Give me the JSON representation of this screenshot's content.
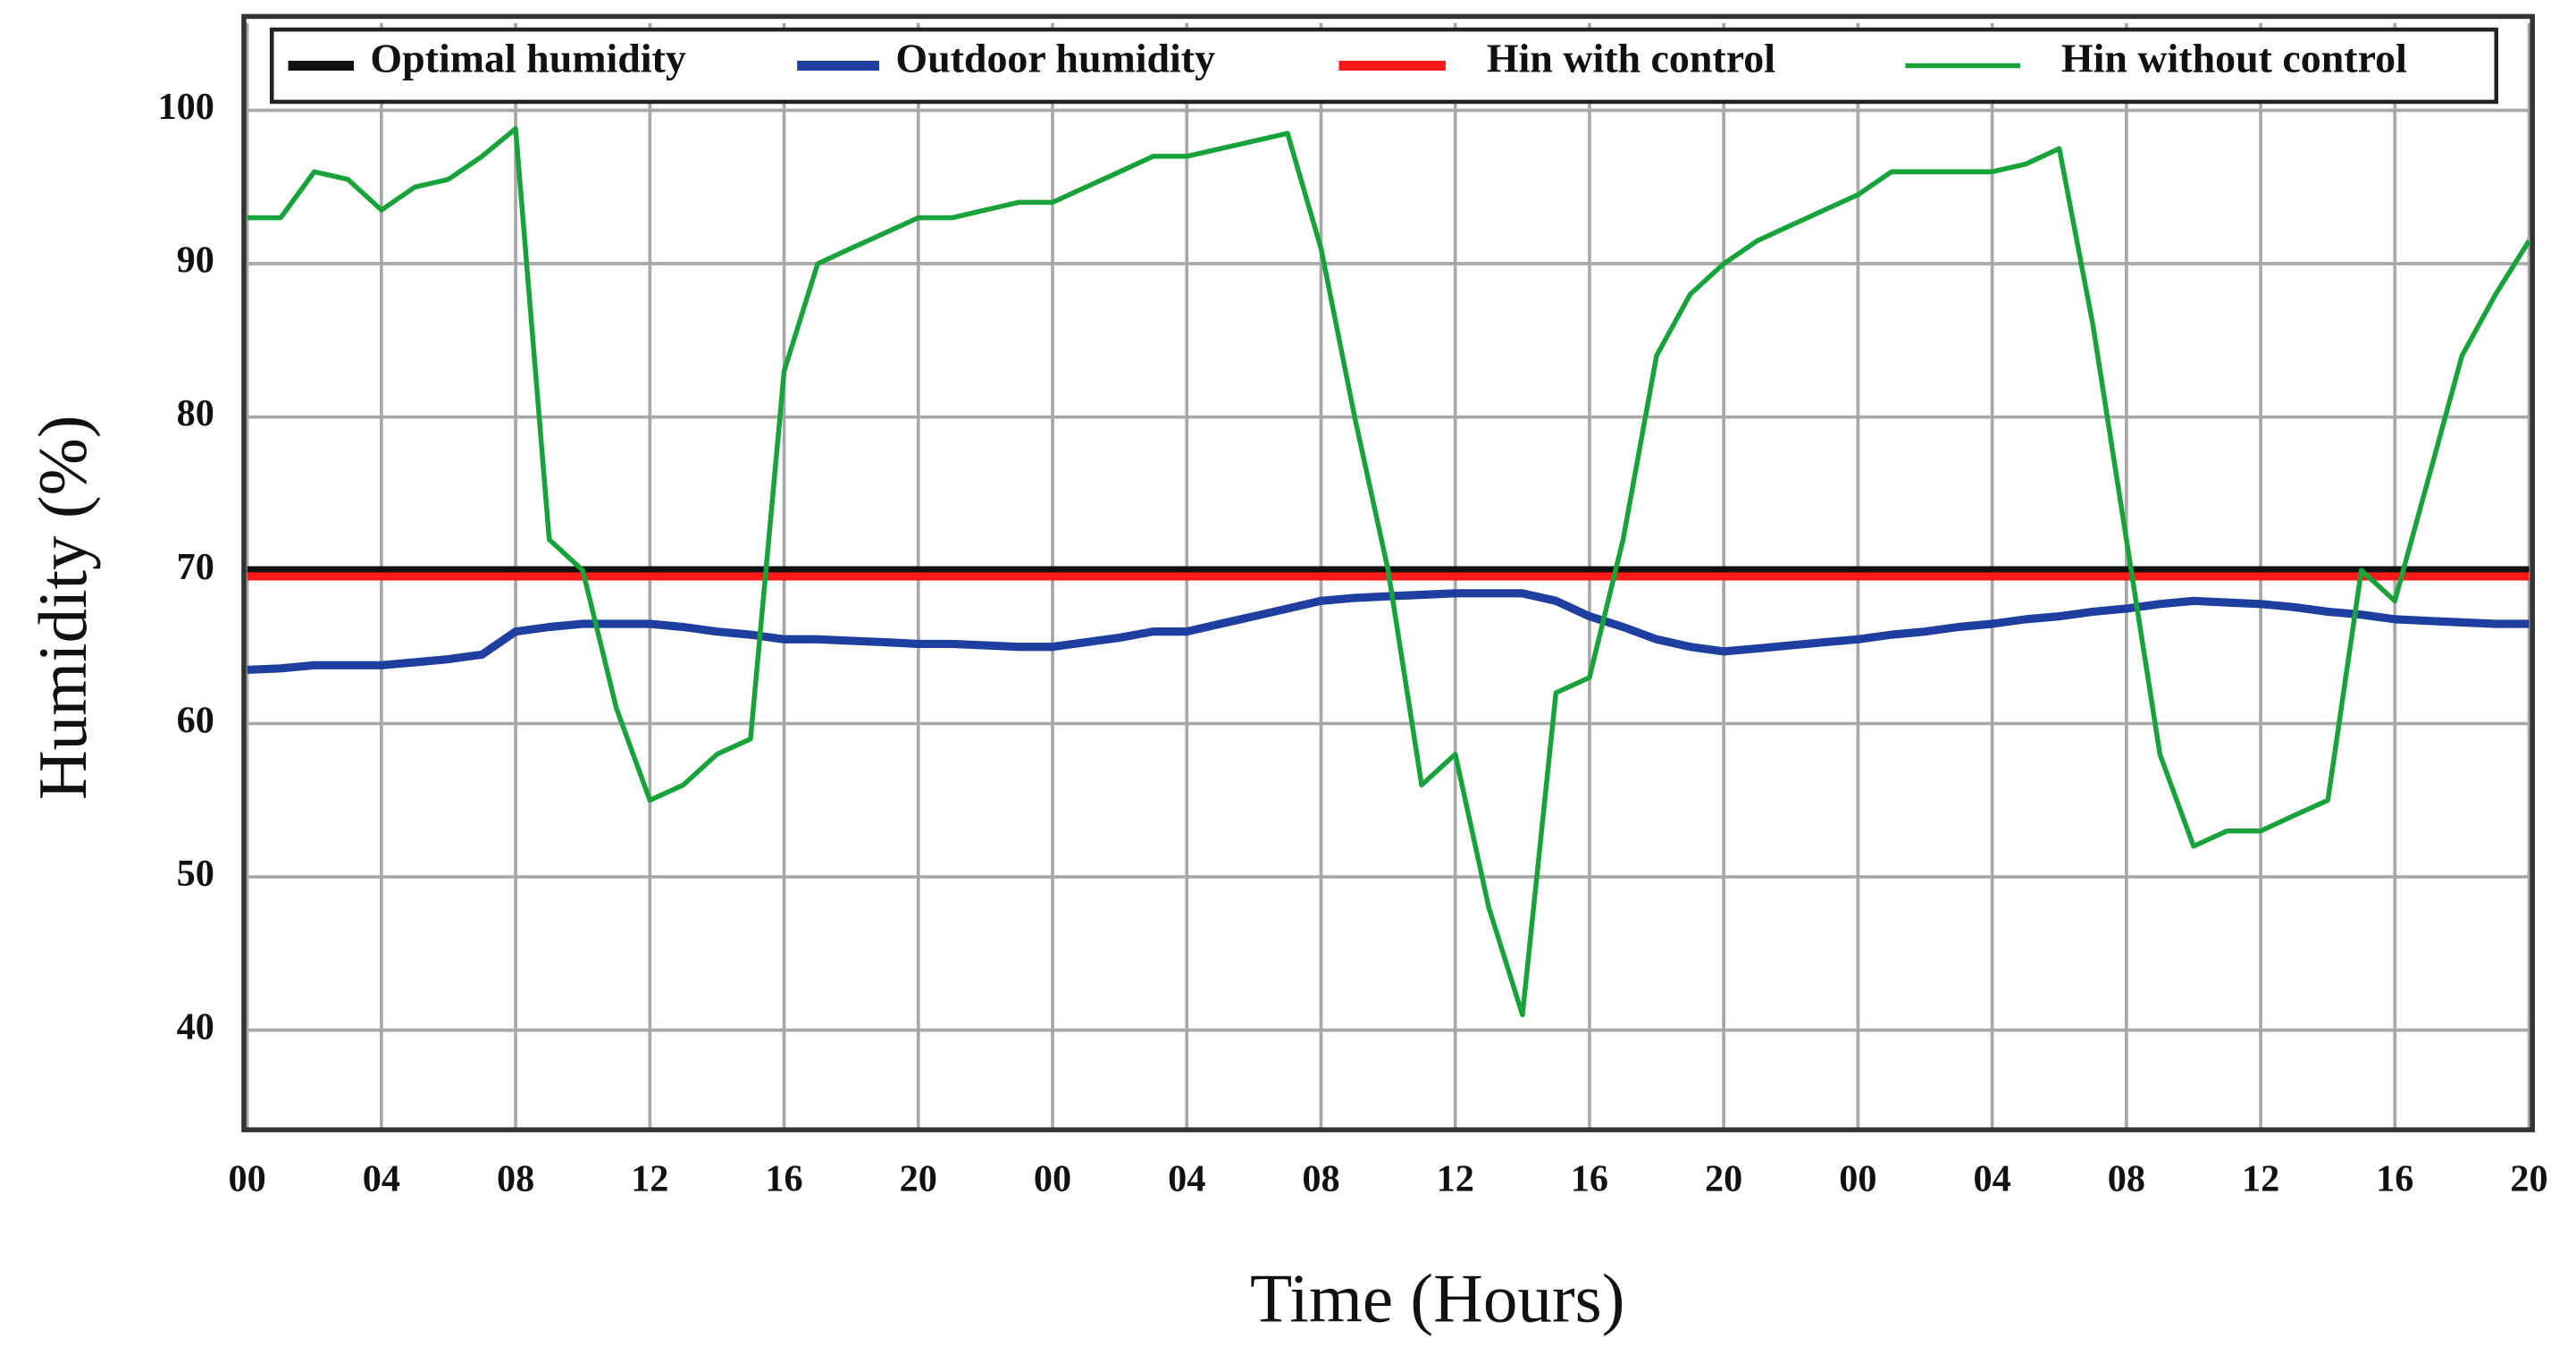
{
  "chart_data": {
    "type": "line",
    "x_label": "Time (Hours)",
    "y_label": "Humidity (%)",
    "x": [
      0,
      1,
      2,
      3,
      4,
      5,
      6,
      7,
      8,
      9,
      10,
      11,
      12,
      13,
      14,
      15,
      16,
      17,
      18,
      19,
      20,
      21,
      22,
      23,
      24,
      25,
      26,
      27,
      28,
      29,
      30,
      31,
      32,
      33,
      34,
      35,
      36,
      37,
      38,
      39,
      40,
      41,
      42,
      43,
      44,
      45,
      46,
      47,
      48,
      49,
      50,
      51,
      52,
      53,
      54,
      55,
      56,
      57,
      58,
      59,
      60,
      61,
      62,
      63,
      64,
      65,
      66,
      67,
      68
    ],
    "xlim": [
      0,
      68
    ],
    "xticks": [
      {
        "value": 0,
        "label": "00"
      },
      {
        "value": 4,
        "label": "04"
      },
      {
        "value": 8,
        "label": "08"
      },
      {
        "value": 12,
        "label": "12"
      },
      {
        "value": 16,
        "label": "16"
      },
      {
        "value": 20,
        "label": "20"
      },
      {
        "value": 24,
        "label": "00"
      },
      {
        "value": 28,
        "label": "04"
      },
      {
        "value": 32,
        "label": "08"
      },
      {
        "value": 36,
        "label": "12"
      },
      {
        "value": 40,
        "label": "16"
      },
      {
        "value": 44,
        "label": "20"
      },
      {
        "value": 48,
        "label": "00"
      },
      {
        "value": 52,
        "label": "04"
      },
      {
        "value": 56,
        "label": "08"
      },
      {
        "value": 60,
        "label": "12"
      },
      {
        "value": 64,
        "label": "16"
      },
      {
        "value": 68,
        "label": "20"
      }
    ],
    "ylim": [
      33.5,
      105.7
    ],
    "yticks": [
      40,
      50,
      60,
      70,
      80,
      90,
      100
    ],
    "grid": true,
    "legend": "top",
    "series": [
      {
        "name": "Optimal humidity",
        "color": "#111111",
        "values": [
          70,
          70,
          70,
          70,
          70,
          70,
          70,
          70,
          70,
          70,
          70,
          70,
          70,
          70,
          70,
          70,
          70,
          70,
          70,
          70,
          70,
          70,
          70,
          70,
          70,
          70,
          70,
          70,
          70,
          70,
          70,
          70,
          70,
          70,
          70,
          70,
          70,
          70,
          70,
          70,
          70,
          70,
          70,
          70,
          70,
          70,
          70,
          70,
          70,
          70,
          70,
          70,
          70,
          70,
          70,
          70,
          70,
          70,
          70,
          70,
          70,
          70,
          70,
          70,
          70,
          70,
          70,
          70,
          70
        ]
      },
      {
        "name": "Outdoor humidity",
        "color": "#1f3fa0",
        "values": [
          63.5,
          63.6,
          63.8,
          63.8,
          63.8,
          64,
          64.2,
          64.5,
          66,
          66.3,
          66.5,
          66.5,
          66.5,
          66.3,
          66,
          65.8,
          65.5,
          65.5,
          65.4,
          65.3,
          65.2,
          65.2,
          65.1,
          65,
          65,
          65.3,
          65.6,
          66,
          66,
          66.5,
          67,
          67.5,
          68,
          68.2,
          68.3,
          68.4,
          68.5,
          68.5,
          68.5,
          68,
          67,
          66.3,
          65.5,
          65,
          64.7,
          64.9,
          65.1,
          65.3,
          65.5,
          65.8,
          66,
          66.3,
          66.5,
          66.8,
          67,
          67.3,
          67.5,
          67.8,
          68,
          67.9,
          67.8,
          67.6,
          67.3,
          67.1,
          66.8,
          66.7,
          66.6,
          66.5,
          66.5
        ]
      },
      {
        "name": "Hin with control",
        "color": "#ff1a1a",
        "values": [
          69.6,
          69.6,
          69.6,
          69.6,
          69.6,
          69.6,
          69.6,
          69.6,
          69.6,
          69.6,
          69.6,
          69.6,
          69.6,
          69.6,
          69.6,
          69.6,
          69.6,
          69.6,
          69.6,
          69.6,
          69.6,
          69.6,
          69.6,
          69.6,
          69.6,
          69.6,
          69.6,
          69.6,
          69.6,
          69.6,
          69.6,
          69.6,
          69.6,
          69.6,
          69.6,
          69.6,
          69.6,
          69.6,
          69.6,
          69.6,
          69.6,
          69.6,
          69.6,
          69.6,
          69.6,
          69.6,
          69.6,
          69.6,
          69.6,
          69.6,
          69.6,
          69.6,
          69.6,
          69.6,
          69.6,
          69.6,
          69.6,
          69.6,
          69.6,
          69.6,
          69.6,
          69.6,
          69.6,
          69.6,
          69.6,
          69.6,
          69.6,
          69.6,
          69.6
        ]
      },
      {
        "name": "Hin without control",
        "color": "#17a33a",
        "values": [
          93,
          93,
          96,
          95.5,
          93.5,
          95,
          95.5,
          97,
          98.8,
          72,
          70,
          61,
          55,
          56,
          58,
          59,
          83,
          90,
          91,
          92,
          93,
          93,
          93.5,
          94,
          94,
          95,
          96,
          97,
          97,
          97.5,
          98,
          98.5,
          91,
          80,
          70,
          56,
          58,
          48,
          41,
          62,
          63,
          72,
          84,
          88,
          90,
          91.5,
          92.5,
          93.5,
          94.5,
          96,
          96,
          96,
          96,
          96.5,
          97.5,
          86,
          72,
          58,
          52,
          53,
          53,
          54,
          55,
          70,
          68,
          76,
          84,
          88,
          91.5
        ]
      }
    ]
  }
}
